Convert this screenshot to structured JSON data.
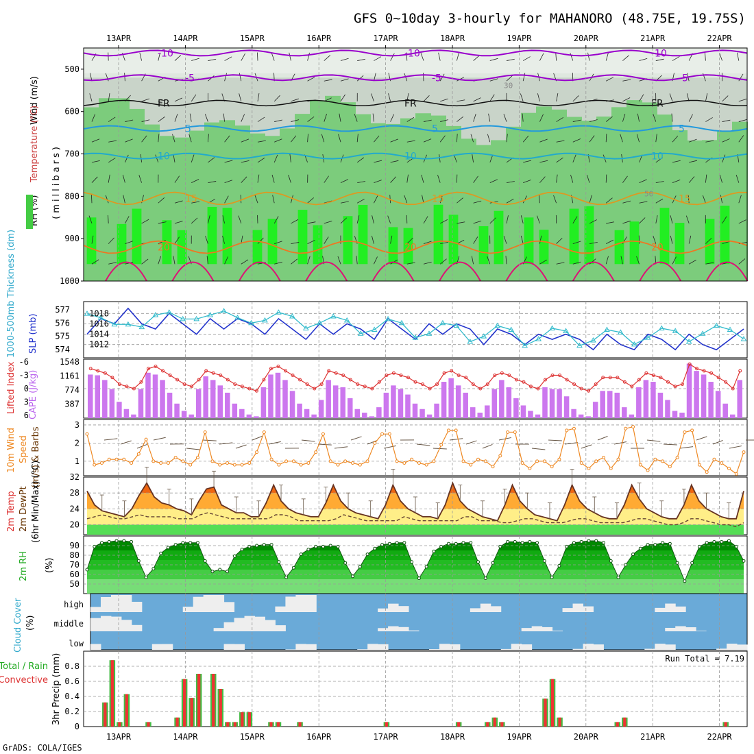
{
  "title": "GFS 0~10day 3-hourly for MAHANORO (48.75E, 19.75S)",
  "footer": "GrADS: COLA/IGES",
  "dates": [
    "13APR",
    "14APR",
    "15APR",
    "16APR",
    "17APR",
    "18APR",
    "19APR",
    "20APR",
    "21APR",
    "22APR"
  ],
  "colors": {
    "purple": "#9900cc",
    "blue": "#2233cc",
    "cyan": "#33bbcc",
    "green": "#33aa33",
    "red": "#dd3333",
    "orange": "#ee8822",
    "cloud_bg": "#6aaad8",
    "cloud_fg": "#eeeeee"
  },
  "chart_data": [
    {
      "type": "heatmap",
      "panel": "upper-air cross section",
      "ylabel_parts": [
        "Wind (m/s)",
        "Temperature (°C)",
        "RH (%)",
        "(millibars)"
      ],
      "ytick_labels": [
        "500",
        "600",
        "700",
        "800",
        "900",
        "1000"
      ],
      "yticks_mb": [
        500,
        600,
        700,
        800,
        900,
        1000
      ],
      "ylim_mb": [
        450,
        1000
      ],
      "isotherm_labels": [
        {
          "text": "-10",
          "level_mb": 462
        },
        {
          "text": "-5",
          "level_mb": 520
        },
        {
          "text": "FR",
          "level_mb": 580
        },
        {
          "text": "5",
          "level_mb": 640
        },
        {
          "text": "10",
          "level_mb": 705
        },
        {
          "text": "15",
          "level_mb": 805
        },
        {
          "text": "20",
          "level_mb": 920
        }
      ],
      "rh_labels": [
        "30",
        "50"
      ]
    },
    {
      "type": "line",
      "panel": "SLP and thickness",
      "ylabel_parts": [
        "1000-500mb Thickness (dm)",
        "SLP (mb)"
      ],
      "left_ticks": [
        "577",
        "576",
        "575",
        "574"
      ],
      "right_ticks": [
        "1018",
        "1016",
        "1014",
        "1012"
      ],
      "series": [
        {
          "name": "SLP (mb)",
          "values": [
            1014,
            1017,
            1016,
            1019,
            1016,
            1015,
            1018,
            1016,
            1014,
            1017,
            1015,
            1017,
            1016,
            1014,
            1017,
            1015,
            1013,
            1016,
            1014,
            1016,
            1015,
            1013,
            1017,
            1015,
            1013,
            1016,
            1014,
            1016,
            1015,
            1012,
            1015,
            1014,
            1012,
            1014,
            1013,
            1014,
            1013,
            1011,
            1014,
            1012,
            1011,
            1014,
            1013,
            1011,
            1014,
            1012,
            1011,
            1013,
            1015
          ]
        },
        {
          "name": "1000-500mb Thickness (dm)",
          "values": [
            576.7,
            576.4,
            575.9,
            575.9,
            575.7,
            576.6,
            576.8,
            576.3,
            576.3,
            576.6,
            576.9,
            576.4,
            576.0,
            576.2,
            576.8,
            576.5,
            575.6,
            576.0,
            576.5,
            576.2,
            575.2,
            575.5,
            576.3,
            576.0,
            574.9,
            575.2,
            576.0,
            575.8,
            574.6,
            575.0,
            575.8,
            575.5,
            574.3,
            574.8,
            575.6,
            575.4,
            574.3,
            574.7,
            575.5,
            575.3,
            574.4,
            574.9,
            575.6,
            575.4,
            574.6,
            575.2,
            575.8,
            575.5,
            574.8
          ]
        }
      ]
    },
    {
      "type": "bar",
      "panel": "Lifted Index and CAPE",
      "ylabel_parts": [
        "Lifted Index",
        "CAPE (J/kg)"
      ],
      "left_ticks": [
        "-6",
        "-3",
        "0",
        "3",
        "6"
      ],
      "right_ticks": [
        "1548",
        "1161",
        "774",
        "387"
      ],
      "series": [
        {
          "name": "CAPE (J/kg)",
          "values": [
            1200,
            1180,
            1050,
            800,
            450,
            250,
            100,
            800,
            1250,
            1200,
            1050,
            700,
            400,
            200,
            100,
            800,
            1150,
            1050,
            900,
            700,
            400,
            250,
            100,
            50,
            850,
            1200,
            1250,
            1050,
            750,
            400,
            250,
            100,
            500,
            1050,
            900,
            850,
            550,
            250,
            150,
            50,
            300,
            700,
            900,
            800,
            650,
            400,
            250,
            100,
            400,
            1000,
            1100,
            900,
            700,
            300,
            150,
            350,
            800,
            1050,
            850,
            550,
            350,
            200,
            100,
            850,
            800,
            800,
            600,
            250,
            100,
            50,
            450,
            750,
            750,
            700,
            300,
            100,
            850,
            1050,
            1000,
            700,
            500,
            200,
            150,
            1500,
            1300,
            1200,
            1000,
            750,
            400,
            100,
            1050
          ]
        },
        {
          "name": "Lifted Index",
          "values": [
            -4.5,
            -4,
            -3.5,
            -2.5,
            -1,
            -0.5,
            0,
            -1.5,
            -4.5,
            -5,
            -4,
            -3,
            -2,
            -1,
            -0.5,
            -2,
            -4,
            -3.5,
            -3,
            -2,
            -1,
            -0.5,
            0,
            0.5,
            -2,
            -4.5,
            -5,
            -4,
            -3,
            -2,
            -1,
            0,
            -1,
            -4,
            -3.5,
            -3,
            -2,
            -1,
            -0.5,
            0,
            -1.5,
            -3,
            -3.5,
            -3,
            -2.5,
            -1.5,
            -1,
            0,
            -1,
            -3.5,
            -4,
            -3,
            -2.5,
            -1,
            0,
            -1,
            -3,
            -3.5,
            -3,
            -2,
            -1.5,
            -0.5,
            0,
            -2,
            -3,
            -3,
            -2,
            -1,
            0,
            0.5,
            -1,
            -2.5,
            -2.5,
            -2.5,
            -1.5,
            -0.5,
            -2,
            -3.5,
            -3,
            -2.5,
            -1.5,
            -0.5,
            -1,
            -5.5,
            -4.5,
            -4,
            -3.5,
            -2.5,
            -1.5,
            0,
            -4
          ]
        }
      ]
    },
    {
      "type": "line",
      "panel": "10m wind",
      "ylabel_parts": [
        "10m Wind",
        "Speed",
        "(m/s) & Barbs"
      ],
      "ytick_labels": [
        "3",
        "2",
        "1"
      ],
      "ylim": [
        0.2,
        3.3
      ],
      "series": [
        {
          "name": "Speed (m/s)",
          "values": [
            2.5,
            0.8,
            0.9,
            1.1,
            1.1,
            1.1,
            0.9,
            1.4,
            2.2,
            1.0,
            0.9,
            0.9,
            1.2,
            1.0,
            0.8,
            1.2,
            2.6,
            1.0,
            0.8,
            0.9,
            0.8,
            0.8,
            0.9,
            1.5,
            2.6,
            1.1,
            0.8,
            1.0,
            1.0,
            0.8,
            0.9,
            1.5,
            2.5,
            1.0,
            0.8,
            1.0,
            0.9,
            0.8,
            1.0,
            2.0,
            2.5,
            2.5,
            1.0,
            0.9,
            1.1,
            0.9,
            0.8,
            1.0,
            1.9,
            2.7,
            2.7,
            1.0,
            0.8,
            1.1,
            1.0,
            0.7,
            1.3,
            2.6,
            2.6,
            0.9,
            0.6,
            1.0,
            1.0,
            0.7,
            1.1,
            2.7,
            2.8,
            0.9,
            0.6,
            1.0,
            1.2,
            0.6,
            1.1,
            2.8,
            2.9,
            0.8,
            0.5,
            1.1,
            1.0,
            0.7,
            1.2,
            2.6,
            2.7,
            0.8,
            0.4,
            1.1,
            0.9,
            0.6,
            0.3,
            1.5
          ]
        }
      ]
    },
    {
      "type": "area",
      "panel": "2m temperature",
      "ylabel_parts": [
        "2m Temp",
        "2m DewPt",
        "(6hr Min/Max) (°C)"
      ],
      "ytick_labels": [
        "32",
        "28",
        "24",
        "20"
      ],
      "ylim": [
        17.5,
        32
      ],
      "series": [
        {
          "name": "2m Temp",
          "values": [
            28.5,
            25,
            23.5,
            23,
            22.5,
            22,
            24,
            27.5,
            30.5,
            27,
            25.5,
            25,
            24,
            23.5,
            22.5,
            26,
            29,
            29.5,
            25,
            24,
            23,
            23,
            22,
            22,
            25.5,
            30,
            26,
            24,
            23,
            22.5,
            22,
            22,
            25.5,
            30,
            26,
            24,
            23,
            22.5,
            22,
            21.5,
            25,
            30,
            26,
            24,
            23,
            22,
            22,
            21.5,
            25,
            30.5,
            26,
            24,
            23,
            22,
            21.5,
            21,
            25,
            30,
            26,
            24,
            22.5,
            22,
            21.5,
            21,
            25,
            30,
            26,
            24,
            23,
            22,
            21.5,
            21.5,
            25,
            30,
            26.5,
            24,
            23,
            22,
            21.5,
            21.5,
            25,
            30,
            26,
            24,
            23,
            22,
            21.5,
            21.5,
            28.5
          ]
        },
        {
          "name": "2m DewPt",
          "values": [
            21.5,
            22,
            22.5,
            22,
            21.5,
            21.5,
            22,
            22.5,
            22,
            22,
            22,
            22,
            21.5,
            21.5,
            21.5,
            22.5,
            23,
            22.5,
            22,
            21.5,
            21.5,
            21.5,
            21.5,
            21.5,
            21.5,
            22.5,
            22.5,
            22,
            21,
            21,
            21,
            21,
            21,
            21.5,
            22.5,
            22,
            21.5,
            21,
            21,
            21,
            21,
            21,
            22,
            21.5,
            21,
            21,
            21,
            21,
            21,
            21,
            22,
            22,
            21,
            21,
            21,
            20.5,
            20.5,
            21,
            21.5,
            21.5,
            21,
            20.5,
            20.5,
            20.5,
            21,
            21.5,
            21.5,
            21,
            20.5,
            20.5,
            20.5,
            20.5,
            21,
            21.5,
            21.5,
            21,
            20.5,
            20,
            20,
            20.5,
            21.5,
            21.5,
            21,
            20.5,
            20,
            20,
            19.5,
            20.5
          ]
        }
      ]
    },
    {
      "type": "area",
      "panel": "2m relative humidity",
      "ylabel_parts": [
        "2m RH",
        "(%)"
      ],
      "ytick_labels": [
        "90",
        "80",
        "70",
        "60",
        "50"
      ],
      "ylim": [
        40,
        100
      ],
      "series": [
        {
          "name": "2m RH",
          "values": [
            65,
            89,
            93,
            94,
            95,
            95,
            94,
            74,
            57,
            66,
            82,
            88,
            91,
            93,
            93,
            93,
            74,
            63,
            65,
            63,
            79,
            86,
            89,
            90,
            91,
            91,
            73,
            57,
            67,
            81,
            86,
            89,
            89,
            90,
            89,
            72,
            58,
            68,
            81,
            87,
            91,
            92,
            93,
            93,
            73,
            56,
            68,
            84,
            89,
            92,
            92,
            93,
            93,
            73,
            56,
            72,
            89,
            94,
            94,
            93,
            94,
            93,
            74,
            57,
            69,
            89,
            93,
            94,
            95,
            95,
            93,
            74,
            57,
            70,
            81,
            87,
            91,
            91,
            93,
            92,
            72,
            53,
            72,
            89,
            93,
            94,
            94,
            95,
            89,
            74
          ]
        }
      ]
    },
    {
      "type": "bar",
      "panel": "cloud cover",
      "ylabel_parts": [
        "Cloud Cover",
        "(%)"
      ],
      "level_labels": [
        "high",
        "middle",
        "low"
      ]
    },
    {
      "type": "bar",
      "panel": "3hr precipitation",
      "ylabel_parts": [
        "Total / Rain",
        "Convective",
        "3hr Precip (mm)"
      ],
      "ytick_labels": [
        "0.8",
        "0.6",
        "0.4",
        "0.2",
        "0"
      ],
      "ylim": [
        0,
        1.0
      ],
      "run_total": "Run Total = 7.19",
      "series": [
        {
          "name": "Total / Rain",
          "values": [
            0,
            0,
            0.32,
            0.88,
            0.06,
            0.43,
            0,
            0,
            0.06,
            0,
            0,
            0,
            0.12,
            0.63,
            0.38,
            0.7,
            0,
            0.7,
            0.5,
            0.06,
            0.06,
            0.19,
            0.19,
            0,
            0,
            0.06,
            0.06,
            0,
            0,
            0.06,
            0,
            0,
            0,
            0,
            0,
            0,
            0,
            0,
            0,
            0,
            0,
            0.06,
            0,
            0,
            0,
            0,
            0,
            0,
            0,
            0,
            0,
            0.06,
            0,
            0,
            0,
            0.06,
            0.12,
            0.06,
            0,
            0,
            0,
            0,
            0,
            0.37,
            0.63,
            0.12,
            0,
            0,
            0,
            0,
            0,
            0,
            0,
            0.06,
            0.12,
            0,
            0,
            0,
            0,
            0,
            0,
            0,
            0,
            0,
            0,
            0,
            0,
            0,
            0.06,
            0,
            0
          ]
        }
      ]
    }
  ]
}
